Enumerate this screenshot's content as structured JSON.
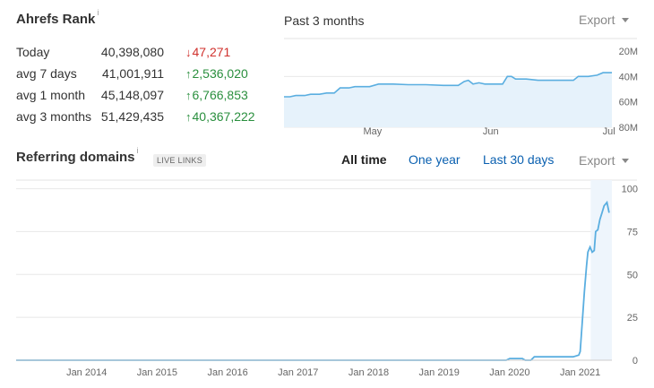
{
  "rank": {
    "title": "Ahrefs Rank",
    "info_icon": "i",
    "period": "Past 3 months",
    "export_label": "Export",
    "rows": [
      {
        "label": "Today",
        "value": "40,398,080",
        "delta": "47,271",
        "direction": "down"
      },
      {
        "label": "avg 7 days",
        "value": "41,001,911",
        "delta": "2,536,020",
        "direction": "up"
      },
      {
        "label": "avg 1 month",
        "value": "45,148,097",
        "delta": "6,766,853",
        "direction": "up"
      },
      {
        "label": "avg 3 months",
        "value": "51,429,435",
        "delta": "40,367,222",
        "direction": "up"
      }
    ]
  },
  "referring": {
    "title": "Referring domains",
    "info_icon": "i",
    "badge": "LIVE LINKS",
    "tabs": [
      "All time",
      "One year",
      "Last 30 days"
    ],
    "active_tab": "All time",
    "export_label": "Export"
  },
  "colors": {
    "line": "#5aaee0",
    "fill": "#e6f2fb",
    "up": "#2a8f3e",
    "down": "#d0312d",
    "link": "#0a60b0"
  },
  "icons": {
    "down": "arrow-down-icon",
    "up": "arrow-up-icon",
    "export": "caret-down-icon"
  },
  "chart_data": [
    {
      "type": "area",
      "ylabel": "",
      "y_ticks": [
        "20M",
        "40M",
        "60M",
        "80M"
      ],
      "y_tick_values": [
        20,
        40,
        60,
        80
      ],
      "ylim": [
        20,
        80
      ],
      "y_inverted": true,
      "x_ticks": [
        "May",
        "Jun",
        "Jul"
      ],
      "x_tick_positions": [
        1.5,
        3.5,
        5.5
      ],
      "xlim": [
        0,
        5.55
      ],
      "x_unit": "weeks-approx",
      "grid": true,
      "series": [
        {
          "values": [
            [
              0.0,
              56
            ],
            [
              0.1,
              56
            ],
            [
              0.2,
              55
            ],
            [
              0.35,
              55
            ],
            [
              0.45,
              54
            ],
            [
              0.6,
              54
            ],
            [
              0.72,
              53
            ],
            [
              0.85,
              53
            ],
            [
              0.95,
              49
            ],
            [
              1.1,
              49
            ],
            [
              1.2,
              48
            ],
            [
              1.45,
              48
            ],
            [
              1.6,
              46
            ],
            [
              1.85,
              46
            ],
            [
              2.1,
              46.5
            ],
            [
              2.4,
              46.5
            ],
            [
              2.7,
              47
            ],
            [
              2.95,
              47
            ],
            [
              3.05,
              44
            ],
            [
              3.12,
              43
            ],
            [
              3.2,
              46
            ],
            [
              3.3,
              45
            ],
            [
              3.4,
              46
            ],
            [
              3.7,
              46
            ],
            [
              3.78,
              40
            ],
            [
              3.85,
              40
            ],
            [
              3.92,
              42
            ],
            [
              4.1,
              42
            ],
            [
              4.3,
              43
            ],
            [
              4.6,
              43
            ],
            [
              4.9,
              43
            ],
            [
              4.98,
              40
            ],
            [
              5.15,
              40
            ],
            [
              5.3,
              39
            ],
            [
              5.4,
              37
            ],
            [
              5.55,
              37
            ]
          ]
        }
      ]
    },
    {
      "type": "line",
      "ylabel": "",
      "y_ticks": [
        "0",
        "25",
        "50",
        "75",
        "100"
      ],
      "ylim": [
        0,
        100
      ],
      "x_ticks": [
        "Jan 2014",
        "Jan 2015",
        "Jan 2016",
        "Jan 2017",
        "Jan 2018",
        "Jan 2019",
        "Jan 2020",
        "Jan 2021"
      ],
      "xlim": [
        2013.0,
        2021.45
      ],
      "grid": true,
      "series": [
        {
          "values": [
            [
              2013.0,
              0
            ],
            [
              2019.95,
              0
            ],
            [
              2020.0,
              1
            ],
            [
              2020.18,
              1
            ],
            [
              2020.22,
              0
            ],
            [
              2020.3,
              0
            ],
            [
              2020.35,
              2
            ],
            [
              2020.9,
              2
            ],
            [
              2020.98,
              3
            ],
            [
              2021.0,
              5
            ],
            [
              2021.04,
              28
            ],
            [
              2021.06,
              40
            ],
            [
              2021.09,
              55
            ],
            [
              2021.11,
              63
            ],
            [
              2021.14,
              66
            ],
            [
              2021.17,
              63
            ],
            [
              2021.2,
              64
            ],
            [
              2021.22,
              75
            ],
            [
              2021.25,
              76
            ],
            [
              2021.28,
              82
            ],
            [
              2021.31,
              86
            ],
            [
              2021.34,
              90
            ],
            [
              2021.38,
              92
            ],
            [
              2021.41,
              86
            ]
          ]
        }
      ]
    }
  ]
}
